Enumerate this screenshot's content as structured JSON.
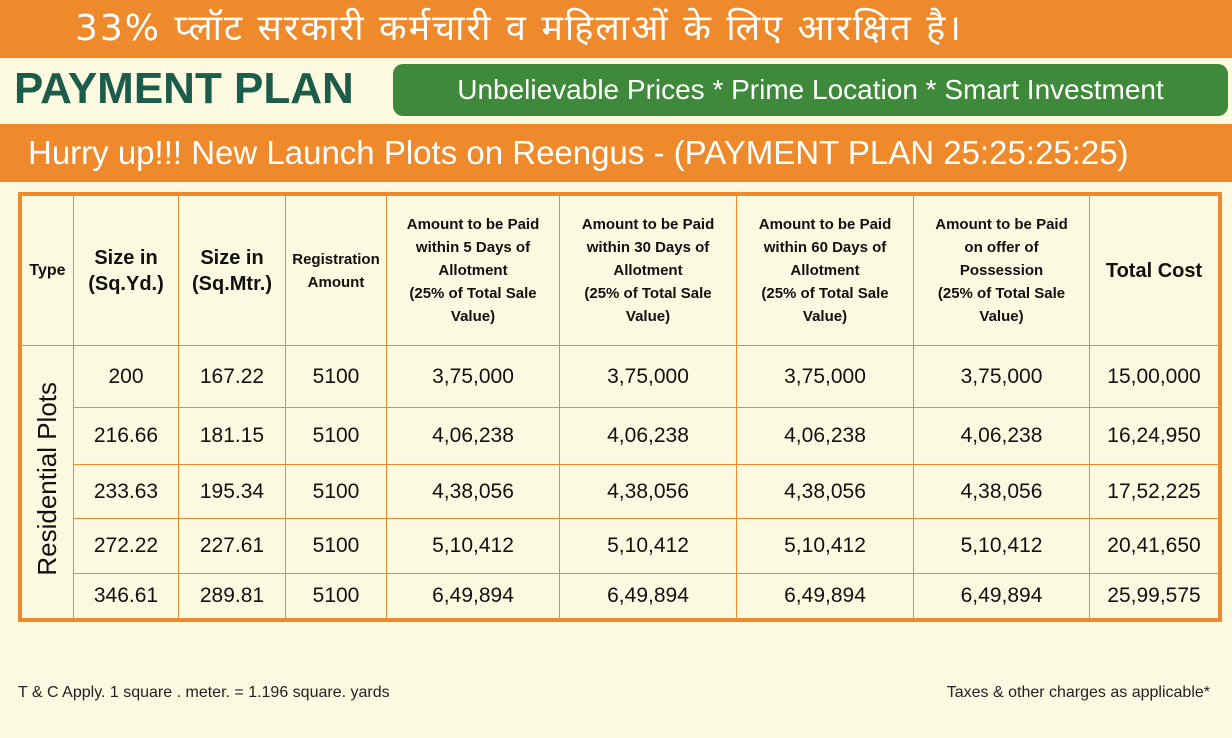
{
  "header": {
    "banner": "33% प्लॉट सरकारी कर्मचारी व महिलाओं के लिए आरक्षित है।",
    "title": "PAYMENT PLAN",
    "tagline": "Unbelievable Prices * Prime Location * Smart Investment",
    "subtitle": "Hurry up!!! New Launch Plots on Reengus - (PAYMENT PLAN 25:25:25:25)"
  },
  "table": {
    "columns": [
      [
        "Type"
      ],
      [
        "Size in",
        "(Sq.Yd.)"
      ],
      [
        "Size in",
        "(Sq.Mtr.)"
      ],
      [
        "Registration",
        "Amount"
      ],
      [
        "Amount to be Paid",
        "within 5 Days of",
        "Allotment",
        "(25% of Total Sale",
        "Value)"
      ],
      [
        "Amount to be Paid",
        "within 30 Days of",
        "Allotment",
        "(25% of Total Sale",
        "Value)"
      ],
      [
        "Amount to be Paid",
        "within 60 Days of",
        "Allotment",
        "(25% of Total Sale",
        "Value)"
      ],
      [
        "Amount to be Paid",
        "on offer of",
        "Possession",
        "(25% of Total Sale",
        "Value)"
      ],
      [
        "Total Cost"
      ]
    ],
    "row_group": "Residential Plots",
    "rows": [
      [
        "200",
        "167.22",
        "5100",
        "3,75,000",
        "3,75,000",
        "3,75,000",
        "3,75,000",
        "15,00,000"
      ],
      [
        "216.66",
        "181.15",
        "5100",
        "4,06,238",
        "4,06,238",
        "4,06,238",
        "4,06,238",
        "16,24,950"
      ],
      [
        "233.63",
        "195.34",
        "5100",
        "4,38,056",
        "4,38,056",
        "4,38,056",
        "4,38,056",
        "17,52,225"
      ],
      [
        "272.22",
        "227.61",
        "5100",
        "5,10,412",
        "5,10,412",
        "5,10,412",
        "5,10,412",
        "20,41,650"
      ],
      [
        "346.61",
        "289.81",
        "5100",
        "6,49,894",
        "6,49,894",
        "6,49,894",
        "6,49,894",
        "25,99,575"
      ]
    ]
  },
  "footer": {
    "left": "T & C Apply. 1 square . meter. = 1.196 square. yards",
    "right": "Taxes & other charges as applicable*"
  }
}
